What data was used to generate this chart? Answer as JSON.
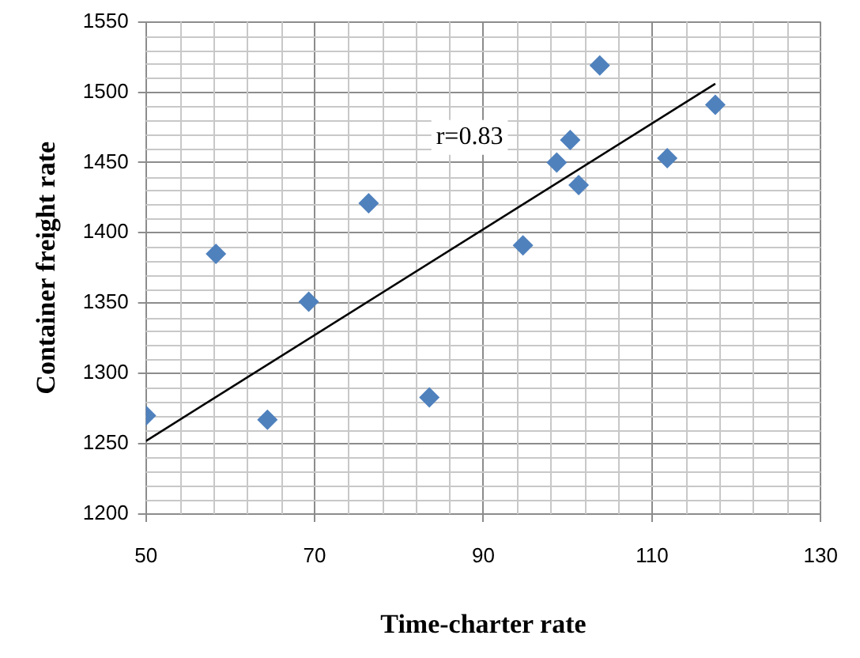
{
  "chart_data": {
    "type": "scatter",
    "xlabel": "Time-charter rate",
    "ylabel": "Container freight rate",
    "annotations": [
      "r=0.83"
    ],
    "series": [
      {
        "marker": "diamond",
        "color": "#4f81bd",
        "x": [
          50,
          58.3,
          64.4,
          69.3,
          76.4,
          83.6,
          94.7,
          98.7,
          100.3,
          101.3,
          103.8,
          111.8,
          117.5
        ],
        "values": [
          1270,
          1385,
          1267,
          1351,
          1421,
          1283,
          1391,
          1450,
          1466,
          1434,
          1519,
          1453,
          1491
        ]
      },
      {
        "type": "line",
        "marker": "none",
        "color": "#000000",
        "x": [
          50,
          117.5
        ],
        "values": [
          1252,
          1506
        ]
      }
    ],
    "xlim": [
      50,
      130
    ],
    "xticks": [
      50,
      70,
      90,
      110,
      130
    ],
    "ylim": [
      1200,
      1550
    ],
    "yticks": [
      1200,
      1250,
      1300,
      1350,
      1400,
      1450,
      1500,
      1550
    ],
    "grid": true,
    "legend": false
  }
}
